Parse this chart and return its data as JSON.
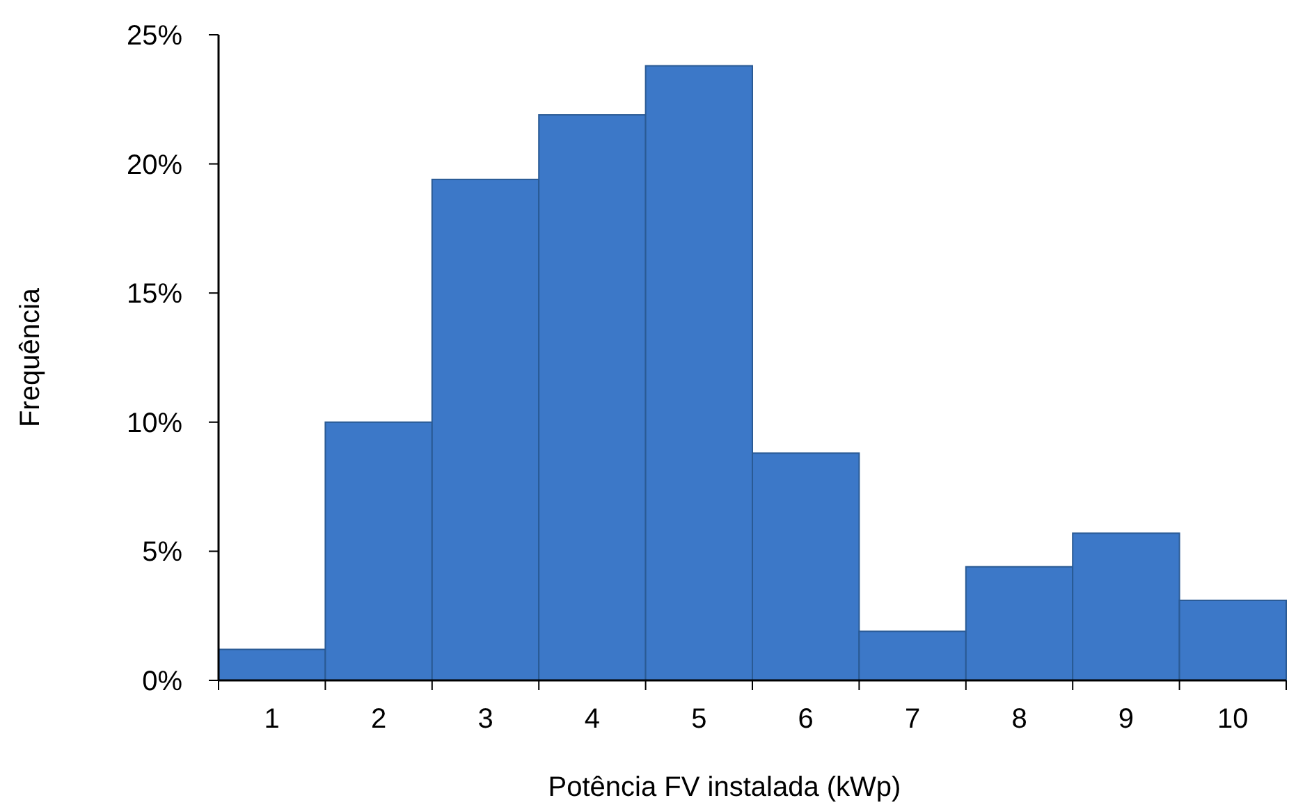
{
  "chart_data": {
    "type": "bar",
    "xlabel": "Potência FV instalada (kWp)",
    "ylabel": "Frequência",
    "categories": [
      "1",
      "2",
      "3",
      "4",
      "5",
      "6",
      "7",
      "8",
      "9",
      "10"
    ],
    "values": [
      1.2,
      10.0,
      19.4,
      21.9,
      23.8,
      8.8,
      1.9,
      4.4,
      5.7,
      3.1
    ],
    "color": "#3c78c8",
    "ylim": [
      0,
      25
    ],
    "yticks": [
      {
        "value": 0,
        "label": "0%"
      },
      {
        "value": 5,
        "label": "5%"
      },
      {
        "value": 10,
        "label": "10%"
      },
      {
        "value": 15,
        "label": "15%"
      },
      {
        "value": 20,
        "label": "20%"
      },
      {
        "value": 25,
        "label": "25%"
      }
    ],
    "grid": false
  }
}
